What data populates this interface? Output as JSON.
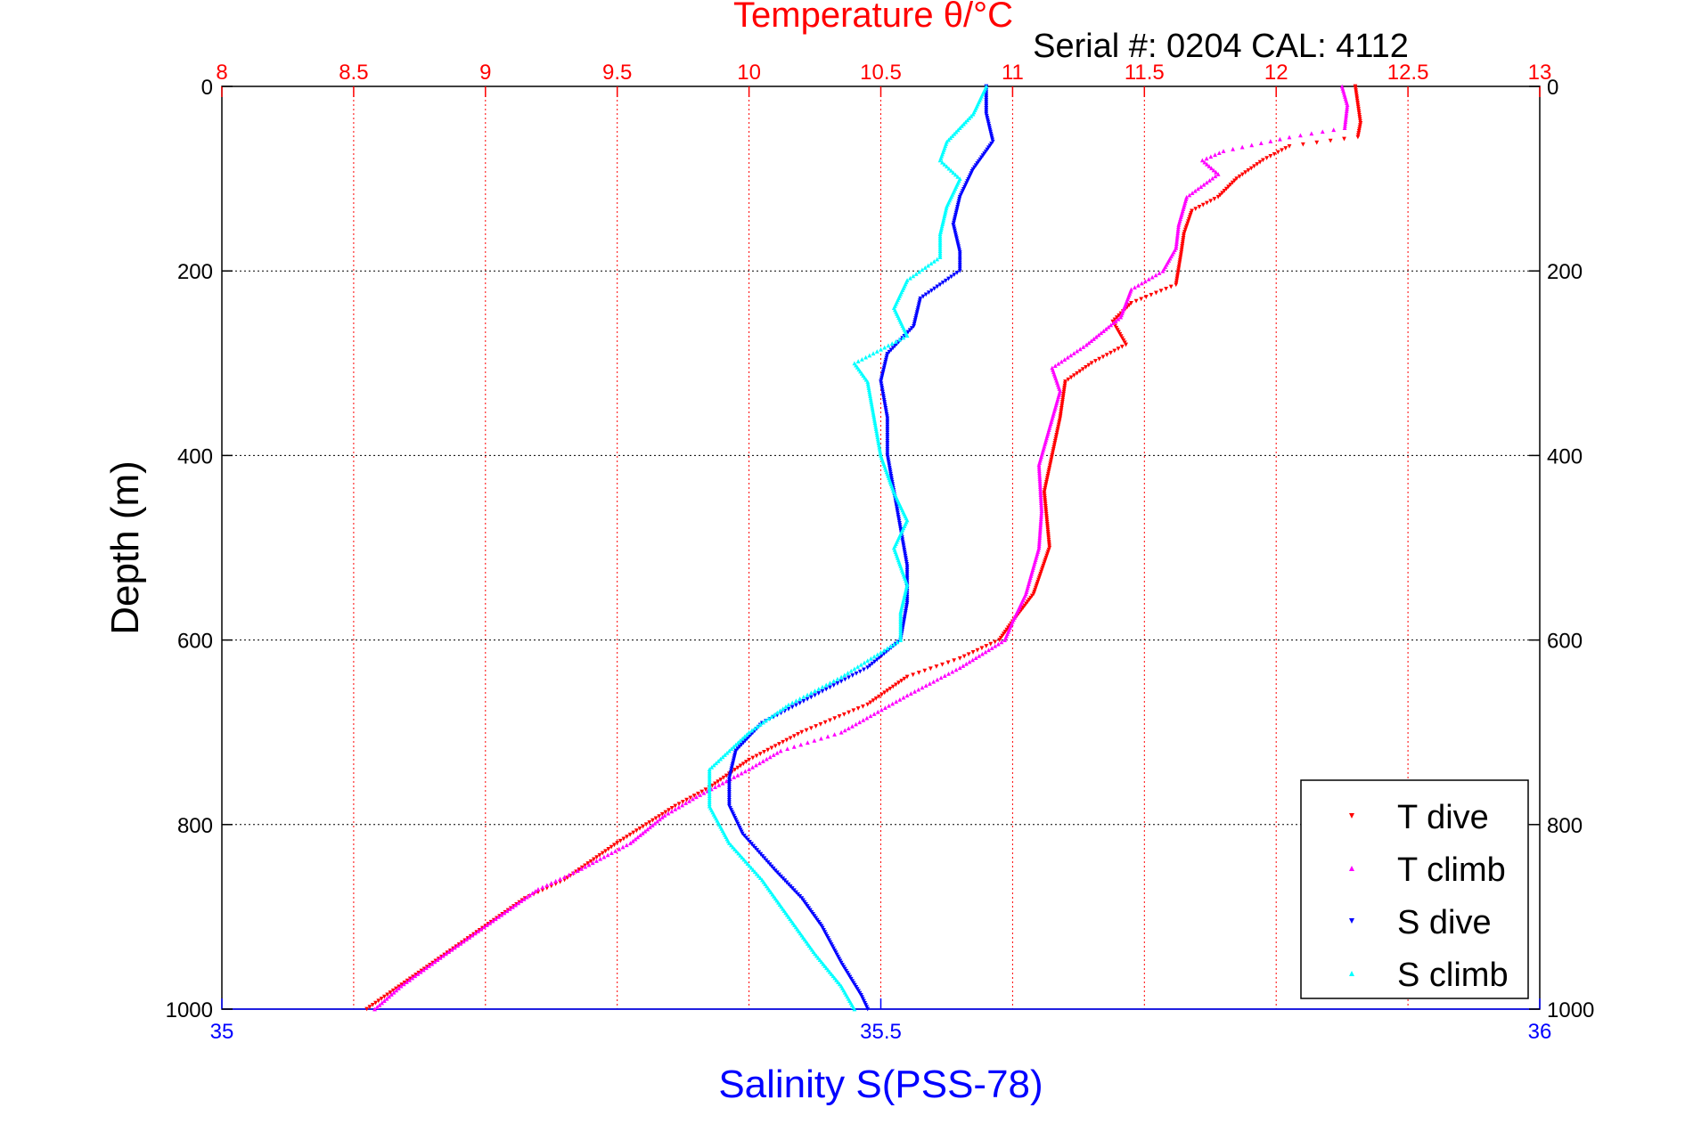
{
  "chart_data": {
    "type": "scatter",
    "title": "Temperature θ/°C",
    "subtitle": "Serial #: 0204  CAL: 4112",
    "ylabel": "Depth (m)",
    "xlabel_bottom": "Salinity S(PSS-78)",
    "ylim": [
      0,
      1000
    ],
    "y_reversed": true,
    "y_ticks": [
      "0",
      "200",
      "400",
      "600",
      "800",
      "1000"
    ],
    "x_top": {
      "label": "Temperature θ/°C",
      "lim": [
        8,
        13
      ],
      "ticks": [
        "8",
        "8.5",
        "9",
        "9.5",
        "10",
        "10.5",
        "11",
        "11.5",
        "12",
        "12.5",
        "13"
      ],
      "color": "#ff0000"
    },
    "x_bottom": {
      "label": "Salinity S(PSS-78)",
      "lim": [
        35,
        36
      ],
      "ticks": [
        "35",
        "35.5",
        "36"
      ],
      "color": "#0000ff"
    },
    "grid": true,
    "legend_position": "bottom-right",
    "series": [
      {
        "name": "T dive",
        "axis": "top",
        "color": "#ff0000",
        "marker": "triangle-down",
        "points": [
          [
            12.3,
            0
          ],
          [
            12.31,
            20
          ],
          [
            12.32,
            40
          ],
          [
            12.31,
            55
          ],
          [
            12.05,
            65
          ],
          [
            11.95,
            80
          ],
          [
            11.85,
            100
          ],
          [
            11.78,
            120
          ],
          [
            11.68,
            135
          ],
          [
            11.65,
            160
          ],
          [
            11.64,
            180
          ],
          [
            11.62,
            215
          ],
          [
            11.45,
            235
          ],
          [
            11.38,
            255
          ],
          [
            11.43,
            280
          ],
          [
            11.3,
            300
          ],
          [
            11.2,
            320
          ],
          [
            11.18,
            360
          ],
          [
            11.15,
            400
          ],
          [
            11.12,
            440
          ],
          [
            11.13,
            470
          ],
          [
            11.14,
            500
          ],
          [
            11.08,
            550
          ],
          [
            11.0,
            580
          ],
          [
            10.95,
            600
          ],
          [
            10.8,
            620
          ],
          [
            10.6,
            640
          ],
          [
            10.45,
            670
          ],
          [
            10.2,
            700
          ],
          [
            10.0,
            730
          ],
          [
            9.85,
            760
          ],
          [
            9.72,
            780
          ],
          [
            9.5,
            820
          ],
          [
            9.3,
            860
          ],
          [
            9.15,
            880
          ],
          [
            9.0,
            910
          ],
          [
            8.8,
            950
          ],
          [
            8.65,
            980
          ],
          [
            8.55,
            1000
          ]
        ]
      },
      {
        "name": "T climb",
        "axis": "top",
        "color": "#ff00ff",
        "marker": "triangle-up",
        "points": [
          [
            12.25,
            0
          ],
          [
            12.27,
            20
          ],
          [
            12.26,
            45
          ],
          [
            12.05,
            55
          ],
          [
            11.8,
            70
          ],
          [
            11.72,
            80
          ],
          [
            11.78,
            95
          ],
          [
            11.66,
            120
          ],
          [
            11.63,
            150
          ],
          [
            11.62,
            175
          ],
          [
            11.57,
            200
          ],
          [
            11.45,
            220
          ],
          [
            11.41,
            250
          ],
          [
            11.28,
            280
          ],
          [
            11.15,
            305
          ],
          [
            11.18,
            330
          ],
          [
            11.14,
            370
          ],
          [
            11.1,
            410
          ],
          [
            11.11,
            460
          ],
          [
            11.1,
            500
          ],
          [
            11.05,
            550
          ],
          [
            11.0,
            580
          ],
          [
            10.97,
            600
          ],
          [
            10.8,
            630
          ],
          [
            10.6,
            660
          ],
          [
            10.35,
            700
          ],
          [
            10.12,
            720
          ],
          [
            10.0,
            740
          ],
          [
            9.8,
            770
          ],
          [
            9.68,
            790
          ],
          [
            9.55,
            820
          ],
          [
            9.35,
            850
          ],
          [
            9.2,
            870
          ],
          [
            9.05,
            900
          ],
          [
            8.85,
            940
          ],
          [
            8.68,
            975
          ],
          [
            8.58,
            1000
          ]
        ]
      },
      {
        "name": "S dive",
        "axis": "bottom",
        "color": "#0000ff",
        "marker": "triangle-down",
        "points": [
          [
            35.58,
            0
          ],
          [
            35.58,
            30
          ],
          [
            35.585,
            60
          ],
          [
            35.57,
            90
          ],
          [
            35.56,
            120
          ],
          [
            35.555,
            150
          ],
          [
            35.56,
            180
          ],
          [
            35.56,
            200
          ],
          [
            35.53,
            230
          ],
          [
            35.525,
            260
          ],
          [
            35.505,
            290
          ],
          [
            35.5,
            320
          ],
          [
            35.505,
            360
          ],
          [
            35.505,
            400
          ],
          [
            35.51,
            440
          ],
          [
            35.515,
            480
          ],
          [
            35.52,
            520
          ],
          [
            35.52,
            560
          ],
          [
            35.515,
            600
          ],
          [
            35.49,
            630
          ],
          [
            35.45,
            660
          ],
          [
            35.41,
            690
          ],
          [
            35.39,
            720
          ],
          [
            35.385,
            750
          ],
          [
            35.385,
            780
          ],
          [
            35.395,
            810
          ],
          [
            35.42,
            850
          ],
          [
            35.44,
            880
          ],
          [
            35.455,
            910
          ],
          [
            35.47,
            950
          ],
          [
            35.485,
            985
          ],
          [
            35.49,
            1000
          ]
        ]
      },
      {
        "name": "S climb",
        "axis": "bottom",
        "color": "#00ffff",
        "marker": "triangle-up",
        "points": [
          [
            35.58,
            0
          ],
          [
            35.57,
            30
          ],
          [
            35.55,
            60
          ],
          [
            35.545,
            80
          ],
          [
            35.56,
            100
          ],
          [
            35.55,
            130
          ],
          [
            35.545,
            160
          ],
          [
            35.545,
            185
          ],
          [
            35.52,
            210
          ],
          [
            35.51,
            240
          ],
          [
            35.52,
            270
          ],
          [
            35.48,
            300
          ],
          [
            35.49,
            320
          ],
          [
            35.495,
            360
          ],
          [
            35.5,
            400
          ],
          [
            35.51,
            440
          ],
          [
            35.52,
            470
          ],
          [
            35.51,
            500
          ],
          [
            35.52,
            540
          ],
          [
            35.515,
            570
          ],
          [
            35.515,
            600
          ],
          [
            35.47,
            640
          ],
          [
            35.43,
            670
          ],
          [
            35.4,
            700
          ],
          [
            35.37,
            740
          ],
          [
            35.37,
            780
          ],
          [
            35.385,
            820
          ],
          [
            35.41,
            860
          ],
          [
            35.43,
            900
          ],
          [
            35.45,
            940
          ],
          [
            35.47,
            975
          ],
          [
            35.48,
            1000
          ]
        ]
      }
    ]
  }
}
